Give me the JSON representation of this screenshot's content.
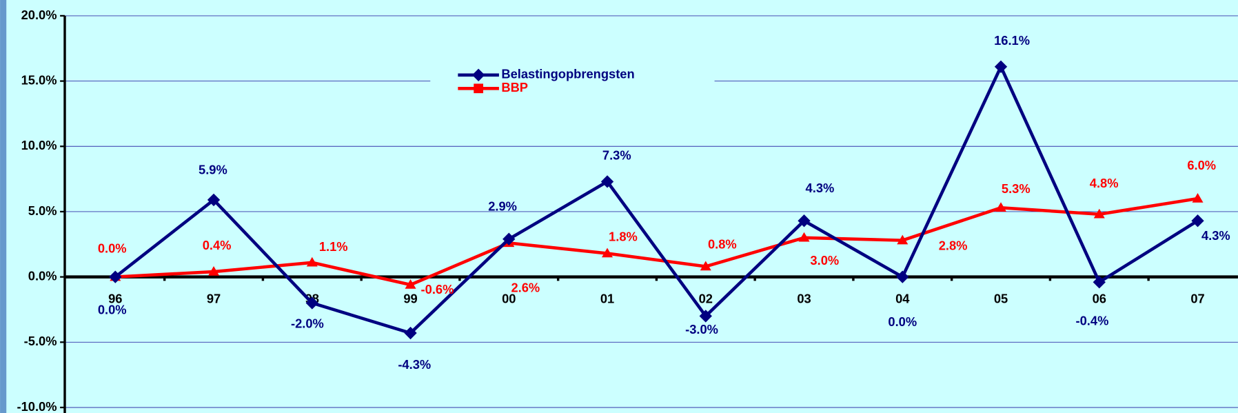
{
  "chart_data": {
    "type": "line",
    "categories": [
      "96",
      "97",
      "98",
      "99",
      "00",
      "01",
      "02",
      "03",
      "04",
      "05",
      "06",
      "07"
    ],
    "series": [
      {
        "name": "Belastingopbrengsten",
        "color": "#000080",
        "marker": "diamond",
        "values": [
          0.0,
          5.9,
          -2.0,
          -4.3,
          2.9,
          7.3,
          -3.0,
          4.3,
          0.0,
          16.1,
          -0.4,
          4.3
        ],
        "value_labels": [
          "0.0%",
          "5.9%",
          "-2.0%",
          "-4.3%",
          "2.9%",
          "7.3%",
          "-3.0%",
          "4.3%",
          "0.0%",
          "16.1%",
          "-0.4%",
          "4.3%"
        ]
      },
      {
        "name": "BBP",
        "color": "#ff0000",
        "marker": "triangle",
        "values": [
          0.0,
          0.4,
          1.1,
          -0.6,
          2.6,
          1.8,
          0.8,
          3.0,
          2.8,
          5.3,
          4.8,
          6.0
        ],
        "value_labels": [
          "0.0%",
          "0.4%",
          "1.1%",
          "-0.6%",
          "2.6%",
          "1.8%",
          "0.8%",
          "3.0%",
          "2.8%",
          "5.3%",
          "4.8%",
          "6.0%"
        ]
      }
    ],
    "ylim": [
      -10,
      20
    ],
    "yticks": [
      {
        "value": -10,
        "label": "-10.0%"
      },
      {
        "value": -5,
        "label": "-5.0%"
      },
      {
        "value": 0,
        "label": "0.0%"
      },
      {
        "value": 5,
        "label": "5.0%"
      },
      {
        "value": 10,
        "label": "10.0%"
      },
      {
        "value": 15,
        "label": "15.0%"
      },
      {
        "value": 20,
        "label": "20.0%"
      }
    ],
    "grid": true,
    "legend": "top"
  }
}
